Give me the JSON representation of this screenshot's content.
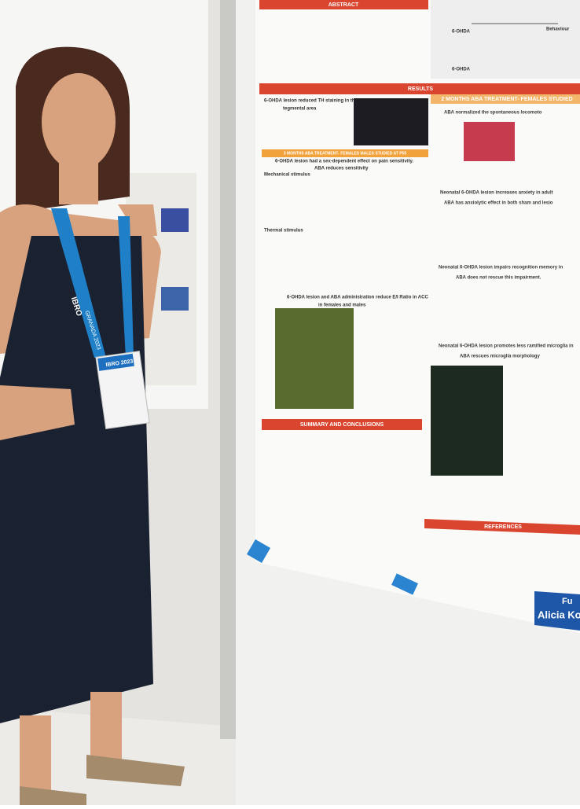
{
  "poster": {
    "abstract": "ABSTRACT",
    "results": "RESULTS",
    "top_panel": [
      "6-OHDA",
      "6-OHDA",
      "Behaviour"
    ],
    "left_headings": [
      "6-OHDA lesion reduced TH staining in the ventral",
      "tegmental area",
      "6-OHDA lesion had a sex-dependent effect on pain sensitivity.",
      "ABA reduces sensitivity",
      "6-OHDA lesion and ABA administration reduce E/I Ratio in ACC",
      "in females and males"
    ],
    "left_band": "3 MONTHS ABA TREATMENT- FEMALES MALES STUDIED AT P55",
    "stimuli": [
      "Mechanical stimulus",
      "Thermal stimulus"
    ],
    "summary": "SUMMARY AND CONCLUSIONS",
    "right_band": "2 MONTHS ABA TREATMENT- FEMALES STUDIED",
    "right_headings": [
      "ABA normalized the spontaneous locomoto",
      "Neonatal 6-OHDA lesion increases anxiety in adult",
      "ABA has anxiolytic effect in both sham and lesio",
      "Neonatal 6-OHDA lesion impairs recognition memory in",
      "ABA does not rescue this impairment.",
      "Neonatal 6-OHDA lesion promotes less ramified microglia in",
      "ABA rescues microglia morphology"
    ],
    "references": "REFERENCES"
  },
  "sign": [
    "Fu",
    "Alicia Kop"
  ],
  "lanyard": [
    "IBRO",
    "GRANADA 2023",
    "IBRO 2023"
  ]
}
